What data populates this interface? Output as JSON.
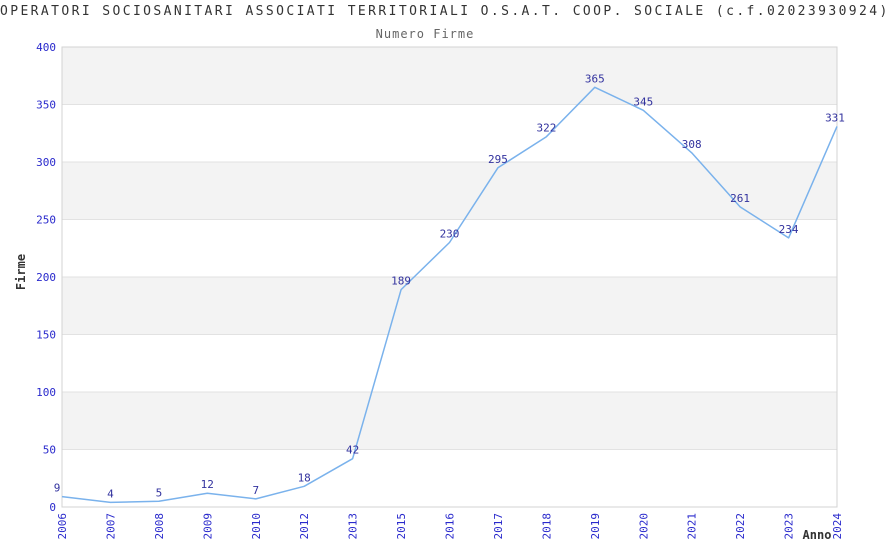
{
  "chart_data": {
    "type": "line",
    "title": "OPERATORI SOCIOSANITARI ASSOCIATI TERRITORIALI O.S.A.T. COOP. SOCIALE (c.f.02023930924)",
    "subtitle": "Numero Firme",
    "xlabel": "Anno",
    "ylabel": "Firme",
    "categories": [
      "2006",
      "2007",
      "2008",
      "2009",
      "2010",
      "2012",
      "2013",
      "2015",
      "2016",
      "2017",
      "2018",
      "2019",
      "2020",
      "2021",
      "2022",
      "2023",
      "2024"
    ],
    "values": [
      9,
      4,
      5,
      12,
      7,
      18,
      42,
      189,
      230,
      295,
      322,
      365,
      345,
      308,
      261,
      234,
      331
    ],
    "ylim": [
      0,
      400
    ],
    "yticks": [
      0,
      50,
      100,
      150,
      200,
      250,
      300,
      350,
      400
    ],
    "grid": true,
    "legend": "none",
    "band_ranges": [
      [
        350,
        400
      ],
      [
        250,
        300
      ],
      [
        150,
        200
      ],
      [
        50,
        100
      ]
    ],
    "data_labels_visible": true,
    "colors": {
      "line": "#7ab2ec",
      "data_label": "#32329e",
      "tick_label": "#2929cc",
      "title": "#333333",
      "subtitle": "#666666",
      "axis_title": "#333333",
      "band": "#f3f3f3",
      "gridline": "#e2e2e2",
      "plot_border": "#d3d3d3",
      "background": "#ffffff"
    }
  }
}
